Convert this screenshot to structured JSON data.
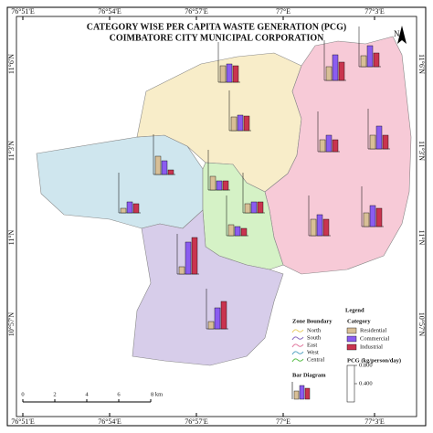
{
  "title": "CATEGORY WISE PER CAPITA WASTE GENERATION (PCG)",
  "subtitle": "COIMBATORE CITY MUNICIPAL CORPORATION",
  "north_label": "N",
  "longitudes": [
    "76°51'E",
    "76°54'E",
    "76°57'E",
    "77°E",
    "77°3'E"
  ],
  "latitudes": [
    "11°6'N",
    "11°3'N",
    "11°N",
    "10°57'N"
  ],
  "legend": {
    "title": "Legend",
    "zone_title": "Zone Boundary",
    "zones": [
      "North",
      "South",
      "East",
      "West",
      "Central"
    ],
    "category_title": "Category",
    "bar_title": "Bar Diagram",
    "pcg_title": "PCG (kg/person/day)",
    "pcg_ylim": [
      0,
      0.8
    ],
    "pcg_ticks": [
      {
        "value": 0.8,
        "label": "0.800"
      },
      {
        "value": 0.4,
        "label": "0.400"
      }
    ]
  },
  "scale_bar": [
    "0",
    "2",
    "4",
    "6",
    "8 km"
  ],
  "chart_data": {
    "type": "grouped-bar-map",
    "series": [
      {
        "name": "Residential",
        "color": "#d8bf96"
      },
      {
        "name": "Commercial",
        "color": "#8a5cf0"
      },
      {
        "name": "Industrial",
        "color": "#c9344f"
      }
    ],
    "groups": [
      [
        0.36,
        0.4,
        0.36
      ],
      [
        0.3,
        0.56,
        0.4
      ],
      [
        0.24,
        0.46,
        0.3
      ],
      [
        0.3,
        0.34,
        0.32
      ],
      [
        0.26,
        0.36,
        0.26
      ],
      [
        0.3,
        0.5,
        0.3
      ],
      [
        0.4,
        0.3,
        0.1
      ],
      [
        0.1,
        0.24,
        0.2
      ],
      [
        0.3,
        0.2,
        0.2
      ],
      [
        0.2,
        0.24,
        0.24
      ],
      [
        0.24,
        0.2,
        0.16
      ],
      [
        0.36,
        0.46,
        0.36
      ],
      [
        0.3,
        0.46,
        0.4
      ],
      [
        0.16,
        0.7,
        0.8
      ],
      [
        0.16,
        0.46,
        0.6
      ]
    ]
  }
}
